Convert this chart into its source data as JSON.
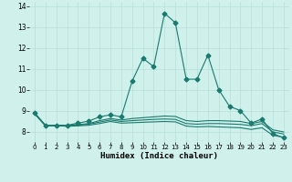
{
  "xlabel": "Humidex (Indice chaleur)",
  "background_color": "#cff0eb",
  "grid_color": "#b0ddd8",
  "line_color": "#1a7a6e",
  "xlim": [
    -0.5,
    23.5
  ],
  "ylim": [
    7.5,
    14.2
  ],
  "yticks": [
    8,
    9,
    10,
    11,
    12,
    13,
    14
  ],
  "xticks": [
    0,
    1,
    2,
    3,
    4,
    5,
    6,
    7,
    8,
    9,
    10,
    11,
    12,
    13,
    14,
    15,
    16,
    17,
    18,
    19,
    20,
    21,
    22,
    23
  ],
  "lines": [
    {
      "x": [
        0,
        1,
        2,
        3,
        4,
        5,
        6,
        7,
        8,
        9,
        10,
        11,
        12,
        13,
        14,
        15,
        16,
        17,
        18,
        19,
        20,
        21,
        22,
        23
      ],
      "y": [
        8.9,
        8.3,
        8.3,
        8.3,
        8.4,
        8.5,
        8.7,
        8.8,
        8.7,
        10.4,
        11.5,
        11.1,
        13.65,
        13.2,
        10.5,
        10.5,
        11.65,
        10.0,
        9.2,
        9.0,
        8.4,
        8.6,
        7.9,
        7.7
      ],
      "marker": "D",
      "markersize": 2.5
    },
    {
      "x": [
        0,
        1,
        2,
        3,
        4,
        5,
        6,
        7,
        8,
        9,
        10,
        11,
        12,
        13,
        14,
        15,
        16,
        17,
        18,
        19,
        20,
        21,
        22,
        23
      ],
      "y": [
        8.85,
        8.28,
        8.28,
        8.28,
        8.33,
        8.38,
        8.52,
        8.62,
        8.55,
        8.62,
        8.66,
        8.7,
        8.74,
        8.72,
        8.52,
        8.48,
        8.52,
        8.52,
        8.5,
        8.48,
        8.38,
        8.48,
        8.08,
        7.98
      ],
      "marker": null,
      "markersize": 0
    },
    {
      "x": [
        0,
        1,
        2,
        3,
        4,
        5,
        6,
        7,
        8,
        9,
        10,
        11,
        12,
        13,
        14,
        15,
        16,
        17,
        18,
        19,
        20,
        21,
        22,
        23
      ],
      "y": [
        8.85,
        8.28,
        8.28,
        8.28,
        8.3,
        8.35,
        8.45,
        8.55,
        8.48,
        8.52,
        8.55,
        8.58,
        8.6,
        8.58,
        8.38,
        8.35,
        8.38,
        8.38,
        8.36,
        8.34,
        8.28,
        8.38,
        7.98,
        7.88
      ],
      "marker": null,
      "markersize": 0
    },
    {
      "x": [
        0,
        1,
        2,
        3,
        4,
        5,
        6,
        7,
        8,
        9,
        10,
        11,
        12,
        13,
        14,
        15,
        16,
        17,
        18,
        19,
        20,
        21,
        22,
        23
      ],
      "y": [
        8.85,
        8.28,
        8.28,
        8.25,
        8.27,
        8.3,
        8.38,
        8.48,
        8.4,
        8.42,
        8.44,
        8.46,
        8.48,
        8.46,
        8.26,
        8.22,
        8.24,
        8.22,
        8.2,
        8.18,
        8.1,
        8.18,
        7.82,
        7.72
      ],
      "marker": null,
      "markersize": 0
    }
  ]
}
